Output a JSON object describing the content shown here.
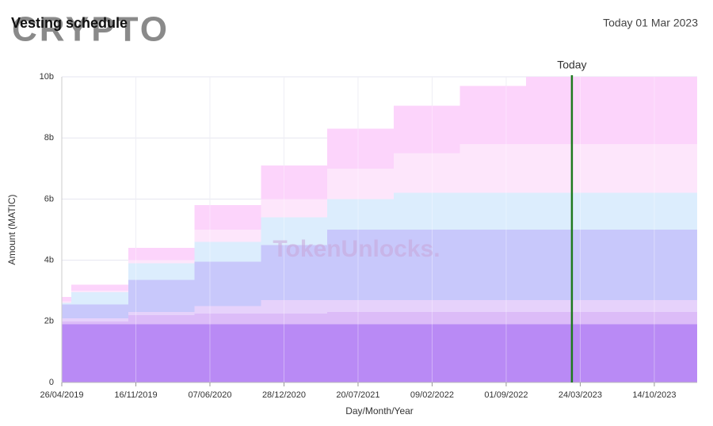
{
  "chart_data": {
    "type": "stacked_step_area",
    "title": "Vesting schedule",
    "date_label": "Today 01 Mar 2023",
    "watermarks": [
      "CRYPTO",
      "TokenUnlocks."
    ],
    "x_label": "Day/Month/Year",
    "y_label": "Amount (MATIC)",
    "x": [
      "26/04/2019",
      "22/05/2019",
      "26/10/2019",
      "26/04/2020",
      "26/10/2020",
      "26/04/2021",
      "26/10/2021",
      "26/04/2022",
      "26/10/2022"
    ],
    "series": [
      {
        "color": "#b98af5",
        "values": [
          1.9,
          1.9,
          1.9,
          1.9,
          1.9,
          1.9,
          1.9,
          1.9,
          1.9
        ]
      },
      {
        "color": "#dcbcf8",
        "values": [
          0.1,
          0.1,
          0.3,
          0.35,
          0.35,
          0.4,
          0.4,
          0.4,
          0.4
        ]
      },
      {
        "color": "#e6d2fb",
        "values": [
          0.1,
          0.1,
          0.1,
          0.25,
          0.45,
          0.4,
          0.4,
          0.4,
          0.4
        ]
      },
      {
        "color": "#c8c8fb",
        "values": [
          0.45,
          0.45,
          1.05,
          1.45,
          1.8,
          2.3,
          2.3,
          2.3,
          2.3
        ]
      },
      {
        "color": "#dcedfd",
        "values": [
          0.05,
          0.4,
          0.55,
          0.65,
          0.9,
          1.0,
          1.2,
          1.2,
          1.2
        ]
      },
      {
        "color": "#fde6fb",
        "values": [
          0.05,
          0.05,
          0.1,
          0.4,
          0.6,
          1.0,
          1.3,
          1.6,
          1.6
        ]
      },
      {
        "color": "#fcd4fb",
        "values": [
          0.15,
          0.2,
          0.4,
          0.8,
          1.1,
          1.3,
          1.55,
          1.9,
          2.2
        ]
      }
    ],
    "xlim": [
      "26/04/2019",
      "09/02/2024"
    ],
    "xticks": [
      "26/04/2019",
      "16/11/2019",
      "07/06/2020",
      "28/12/2020",
      "20/07/2021",
      "09/02/2022",
      "01/09/2022",
      "24/03/2023",
      "14/10/2023"
    ],
    "ylim": [
      0,
      10
    ],
    "yticks": [
      0,
      {
        "value": 2,
        "label": "2b"
      },
      {
        "value": 4,
        "label": "4b"
      },
      {
        "value": 6,
        "label": "6b"
      },
      {
        "value": 8,
        "label": "8b"
      },
      {
        "value": 10,
        "label": "10b"
      }
    ],
    "grid": true,
    "today_marker": {
      "x": "01/03/2023",
      "label": "Today",
      "color": "#1f7a1f"
    }
  }
}
